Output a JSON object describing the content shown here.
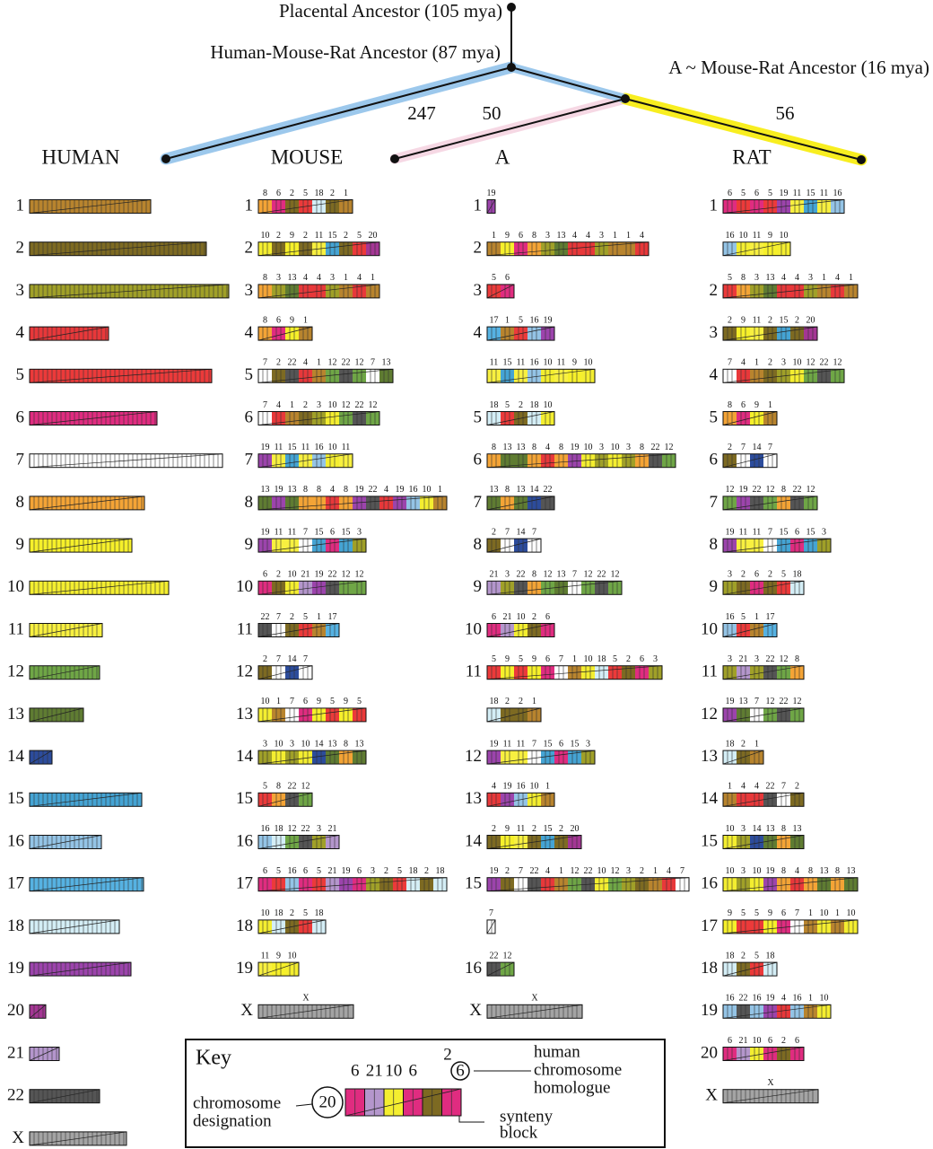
{
  "tree": {
    "placental": "Placental Ancestor (105 mya)",
    "hmr": "Human-Mouse-Rat Ancestor (87 mya)",
    "mouse_rat": "A ~ Mouse-Rat Ancestor (16 mya)",
    "branch_labels": [
      "247",
      "50",
      "56"
    ]
  },
  "homolog_colors": {
    "1": "#b8842e",
    "2": "#7d6a22",
    "3": "#a0a028",
    "4": "#e8383a",
    "5": "#ec3a3a",
    "6": "#e02c80",
    "7": "#ffffff",
    "8": "#f4a436",
    "9": "#f6f02a",
    "10": "#f4ee30",
    "11": "#f8f040",
    "12": "#6fa646",
    "13": "#5f7c32",
    "14": "#2c4c9c",
    "15": "#45a4d4",
    "16": "#94c4e6",
    "17": "#56b2e2",
    "18": "#d4eef6",
    "19": "#9c44ac",
    "20": "#a43694",
    "21": "#b496cc",
    "22": "#555555",
    "X": "#a4a4a4"
  },
  "columns": [
    {
      "header": "HUMAN",
      "chromosomes": [
        {
          "name": "1"
        },
        {
          "name": "2"
        },
        {
          "name": "3"
        },
        {
          "name": "4"
        },
        {
          "name": "5"
        },
        {
          "name": "6"
        },
        {
          "name": "7"
        },
        {
          "name": "8"
        },
        {
          "name": "9"
        },
        {
          "name": "10"
        },
        {
          "name": "11"
        },
        {
          "name": "12"
        },
        {
          "name": "13"
        },
        {
          "name": "14"
        },
        {
          "name": "15"
        },
        {
          "name": "16"
        },
        {
          "name": "17"
        },
        {
          "name": "18"
        },
        {
          "name": "19"
        },
        {
          "name": "20"
        },
        {
          "name": "21"
        },
        {
          "name": "22"
        },
        {
          "name": "X"
        }
      ]
    },
    {
      "header": "MOUSE",
      "chromosomes": [
        {
          "name": "1",
          "blocks": [
            "8",
            "6",
            "2",
            "5",
            "18",
            "2",
            "1"
          ]
        },
        {
          "name": "2",
          "blocks": [
            "10",
            "2",
            "9",
            "2",
            "11",
            "15",
            "2",
            "5",
            "20"
          ]
        },
        {
          "name": "3",
          "blocks": [
            "8",
            "3",
            "13",
            "4",
            "4",
            "3",
            "1",
            "4",
            "1"
          ]
        },
        {
          "name": "4",
          "blocks": [
            "8",
            "6",
            "9",
            "1"
          ]
        },
        {
          "name": "5",
          "blocks": [
            "7",
            "2",
            "22",
            "4",
            "1",
            "12",
            "22",
            "12",
            "7",
            "13"
          ]
        },
        {
          "name": "6",
          "blocks": [
            "7",
            "4",
            "1",
            "2",
            "3",
            "10",
            "12",
            "22",
            "12"
          ]
        },
        {
          "name": "7",
          "blocks": [
            "19",
            "11",
            "15",
            "11",
            "16",
            "10",
            "11"
          ]
        },
        {
          "name": "8",
          "blocks": [
            "13",
            "19",
            "13",
            "8",
            "8",
            "4",
            "8",
            "19",
            "22",
            "4",
            "19",
            "16",
            "10",
            "1"
          ]
        },
        {
          "name": "9",
          "blocks": [
            "19",
            "11",
            "11",
            "7",
            "15",
            "6",
            "15",
            "3"
          ]
        },
        {
          "name": "10",
          "blocks": [
            "6",
            "2",
            "10",
            "21",
            "19",
            "22",
            "12",
            "12"
          ]
        },
        {
          "name": "11",
          "blocks": [
            "22",
            "7",
            "2",
            "5",
            "1",
            "17"
          ]
        },
        {
          "name": "12",
          "blocks": [
            "2",
            "7",
            "14",
            "7"
          ]
        },
        {
          "name": "13",
          "blocks": [
            "10",
            "1",
            "7",
            "6",
            "9",
            "5",
            "9",
            "5"
          ]
        },
        {
          "name": "14",
          "blocks": [
            "3",
            "10",
            "3",
            "10",
            "14",
            "13",
            "8",
            "13"
          ]
        },
        {
          "name": "15",
          "blocks": [
            "5",
            "8",
            "22",
            "12"
          ]
        },
        {
          "name": "16",
          "blocks": [
            "16",
            "18",
            "12",
            "22",
            "3",
            "21"
          ]
        },
        {
          "name": "17",
          "blocks": [
            "6",
            "5",
            "16",
            "6",
            "5",
            "21",
            "19",
            "6",
            "3",
            "2",
            "5",
            "18",
            "2",
            "18"
          ]
        },
        {
          "name": "18",
          "blocks": [
            "10",
            "18",
            "2",
            "5",
            "18"
          ]
        },
        {
          "name": "19",
          "blocks": [
            "11",
            "9",
            "10"
          ]
        },
        {
          "name": "X",
          "blocks": [
            "X"
          ]
        }
      ]
    },
    {
      "header": "A",
      "chromosomes": [
        {
          "name": "1",
          "blocks": [
            "19"
          ]
        },
        {
          "name": "2",
          "blocks": [
            "1",
            "9",
            "6",
            "8",
            "3",
            "13",
            "4",
            "4",
            "3",
            "1",
            "1",
            "4"
          ]
        },
        {
          "name": "3",
          "blocks": [
            "5",
            "6"
          ]
        },
        {
          "name": "4",
          "blocks": [
            "17",
            "1",
            "5",
            "16",
            "19"
          ]
        },
        {
          "name": null,
          "blocks": [
            "11",
            "15",
            "11",
            "16",
            "10",
            "11",
            "9",
            "10"
          ]
        },
        {
          "name": "5",
          "blocks": [
            "18",
            "5",
            "2",
            "18",
            "10"
          ]
        },
        {
          "name": "6",
          "blocks": [
            "8",
            "13",
            "13",
            "8",
            "4",
            "8",
            "19",
            "10",
            "3",
            "10",
            "3",
            "8",
            "22",
            "12"
          ]
        },
        {
          "name": "7",
          "blocks": [
            "13",
            "8",
            "13",
            "14",
            "22"
          ]
        },
        {
          "name": "8",
          "blocks": [
            "2",
            "7",
            "14",
            "7"
          ]
        },
        {
          "name": "9",
          "blocks": [
            "21",
            "3",
            "22",
            "8",
            "12",
            "13",
            "7",
            "12",
            "22",
            "12"
          ]
        },
        {
          "name": "10",
          "blocks": [
            "6",
            "21",
            "10",
            "2",
            "6"
          ]
        },
        {
          "name": "11",
          "blocks": [
            "5",
            "9",
            "5",
            "9",
            "6",
            "7",
            "1",
            "10",
            "18",
            "5",
            "2",
            "6",
            "3"
          ]
        },
        {
          "name": null,
          "blocks": [
            "18",
            "2",
            "2",
            "1"
          ]
        },
        {
          "name": "12",
          "blocks": [
            "19",
            "11",
            "11",
            "7",
            "15",
            "6",
            "15",
            "3"
          ]
        },
        {
          "name": "13",
          "blocks": [
            "4",
            "19",
            "16",
            "10",
            "1"
          ]
        },
        {
          "name": "14",
          "blocks": [
            "2",
            "9",
            "11",
            "2",
            "15",
            "2",
            "20"
          ]
        },
        {
          "name": "15",
          "blocks": [
            "19",
            "2",
            "7",
            "22",
            "4",
            "1",
            "12",
            "22",
            "10",
            "12",
            "3",
            "2",
            "1",
            "4",
            "7"
          ]
        },
        {
          "name": null,
          "blocks": [
            "7"
          ]
        },
        {
          "name": "16",
          "blocks": [
            "22",
            "12"
          ]
        },
        {
          "name": "X",
          "blocks": [
            "X"
          ]
        }
      ]
    },
    {
      "header": "RAT",
      "chromosomes": [
        {
          "name": "1",
          "blocks": [
            "6",
            "5",
            "6",
            "5",
            "19",
            "11",
            "15",
            "11",
            "16"
          ]
        },
        {
          "name": null,
          "blocks": [
            "16",
            "10",
            "11",
            "9",
            "10"
          ]
        },
        {
          "name": "2",
          "blocks": [
            "5",
            "8",
            "3",
            "13",
            "4",
            "4",
            "3",
            "1",
            "4",
            "1"
          ]
        },
        {
          "name": "3",
          "blocks": [
            "2",
            "9",
            "11",
            "2",
            "15",
            "2",
            "20"
          ]
        },
        {
          "name": "4",
          "blocks": [
            "7",
            "4",
            "1",
            "2",
            "3",
            "10",
            "12",
            "22",
            "12"
          ]
        },
        {
          "name": "5",
          "blocks": [
            "8",
            "6",
            "9",
            "1"
          ]
        },
        {
          "name": "6",
          "blocks": [
            "2",
            "7",
            "14",
            "7"
          ]
        },
        {
          "name": "7",
          "blocks": [
            "12",
            "19",
            "22",
            "12",
            "8",
            "22",
            "12"
          ]
        },
        {
          "name": "8",
          "blocks": [
            "19",
            "11",
            "11",
            "7",
            "15",
            "6",
            "15",
            "3"
          ]
        },
        {
          "name": "9",
          "blocks": [
            "3",
            "2",
            "6",
            "2",
            "5",
            "18"
          ]
        },
        {
          "name": "10",
          "blocks": [
            "16",
            "5",
            "1",
            "17"
          ]
        },
        {
          "name": "11",
          "blocks": [
            "3",
            "21",
            "3",
            "22",
            "12",
            "8"
          ]
        },
        {
          "name": "12",
          "blocks": [
            "19",
            "13",
            "7",
            "12",
            "22",
            "12"
          ]
        },
        {
          "name": "13",
          "blocks": [
            "18",
            "2",
            "1"
          ]
        },
        {
          "name": "14",
          "blocks": [
            "1",
            "4",
            "4",
            "22",
            "7",
            "2"
          ]
        },
        {
          "name": "15",
          "blocks": [
            "10",
            "3",
            "14",
            "13",
            "8",
            "13"
          ]
        },
        {
          "name": "16",
          "blocks": [
            "10",
            "3",
            "10",
            "19",
            "8",
            "4",
            "8",
            "13",
            "8",
            "13"
          ]
        },
        {
          "name": "17",
          "blocks": [
            "9",
            "5",
            "5",
            "9",
            "6",
            "7",
            "1",
            "10",
            "1",
            "10"
          ]
        },
        {
          "name": "18",
          "blocks": [
            "18",
            "2",
            "5",
            "18"
          ]
        },
        {
          "name": "19",
          "blocks": [
            "16",
            "22",
            "16",
            "19",
            "4",
            "16",
            "1",
            "10"
          ]
        },
        {
          "name": "20",
          "blocks": [
            "6",
            "21",
            "10",
            "6",
            "2",
            "6"
          ]
        },
        {
          "name": "X",
          "blocks": [
            "X"
          ]
        }
      ]
    }
  ],
  "key": {
    "title": "Key",
    "chromosome": "20",
    "blocks": [
      "6",
      "21",
      "10",
      "6",
      "2",
      "6"
    ],
    "designation": [
      "chromosome",
      "designation"
    ],
    "homologue": [
      "human",
      "chromosome",
      "homologue"
    ],
    "synteny": [
      "synteny",
      "block"
    ]
  }
}
